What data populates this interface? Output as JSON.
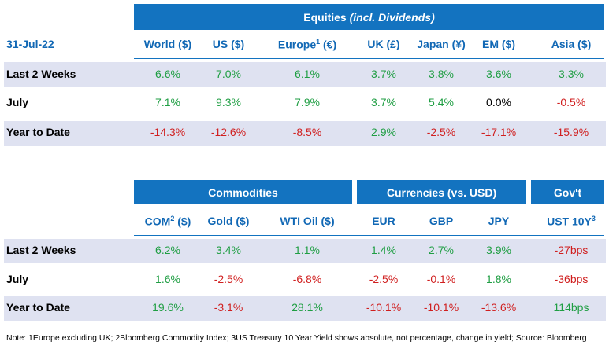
{
  "date": "31-Jul-22",
  "table1": {
    "banner_main": "Equities ",
    "banner_italic": "(incl. Dividends)",
    "columns": [
      {
        "label": "World ($)",
        "sup": ""
      },
      {
        "label": "US ($)",
        "sup": ""
      },
      {
        "label": "Europe",
        "sup": "1",
        "suffix": " (€)"
      },
      {
        "label": "UK (£)",
        "sup": ""
      },
      {
        "label": "Japan (¥)",
        "sup": ""
      },
      {
        "label": "EM ($)",
        "sup": ""
      },
      {
        "label": "Asia ($)",
        "sup": ""
      }
    ],
    "rows": [
      {
        "label": "Last 2 Weeks",
        "values": [
          "6.6%",
          "7.0%",
          "6.1%",
          "3.7%",
          "3.8%",
          "3.6%",
          "3.3%"
        ]
      },
      {
        "label": "July",
        "values": [
          "7.1%",
          "9.3%",
          "7.9%",
          "3.7%",
          "5.4%",
          "0.0%",
          "-0.5%"
        ]
      },
      {
        "label": "Year to Date",
        "values": [
          "-14.3%",
          "-12.6%",
          "-8.5%",
          "2.9%",
          "-2.5%",
          "-17.1%",
          "-15.9%"
        ]
      }
    ]
  },
  "table2": {
    "banners": [
      "Commodities",
      "Currencies (vs. USD)",
      "Gov't"
    ],
    "columns": [
      {
        "label": "COM",
        "sup": "2",
        "suffix": " ($)"
      },
      {
        "label": "Gold ($)",
        "sup": ""
      },
      {
        "label": "WTI Oil ($)",
        "sup": ""
      },
      {
        "label": "EUR",
        "sup": ""
      },
      {
        "label": "GBP",
        "sup": ""
      },
      {
        "label": "JPY",
        "sup": ""
      },
      {
        "label": "UST 10Y",
        "sup": "3"
      }
    ],
    "rows": [
      {
        "label": "Last 2 Weeks",
        "values": [
          "6.2%",
          "3.4%",
          "1.1%",
          "1.4%",
          "2.7%",
          "3.9%",
          "-27bps"
        ]
      },
      {
        "label": "July",
        "values": [
          "1.6%",
          "-2.5%",
          "-6.8%",
          "-2.5%",
          "-0.1%",
          "1.8%",
          "-36bps"
        ]
      },
      {
        "label": "Year to Date",
        "values": [
          "19.6%",
          "-3.1%",
          "28.1%",
          "-10.1%",
          "-10.1%",
          "-13.6%",
          "114bps"
        ]
      }
    ]
  },
  "note": "Note: 1Europe excluding UK; 2Bloomberg Commodity Index; 3US Treasury 10 Year Yield shows absolute, not percentage, change in yield; Source: Bloomberg",
  "colors": {
    "banner": "#1373c0",
    "header_text": "#1168b5",
    "band": "#dfe2f1",
    "positive": "#1f9e43",
    "negative": "#d01f1f"
  }
}
